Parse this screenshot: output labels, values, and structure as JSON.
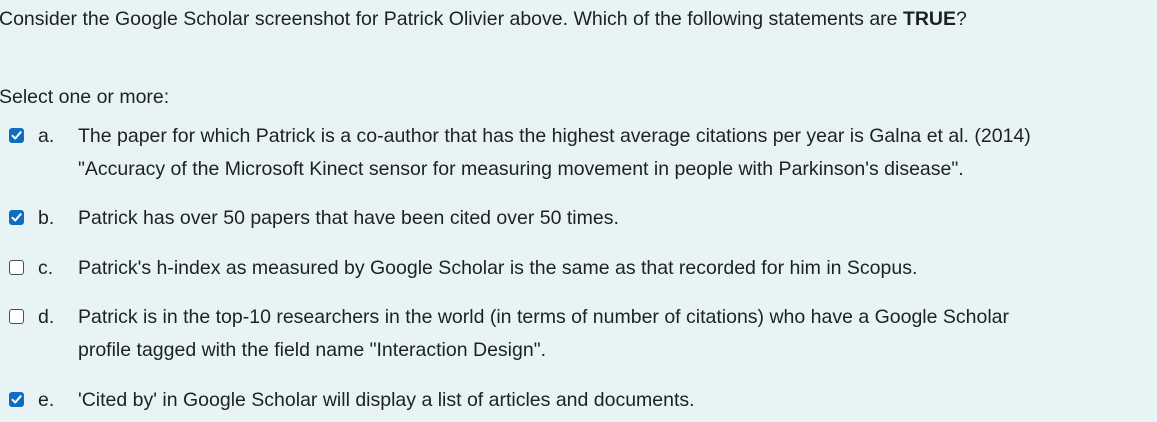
{
  "question": {
    "before": "Consider the Google Scholar screenshot for Patrick Olivier above. Which of the following statements are ",
    "emphasis": "TRUE",
    "after": "?"
  },
  "prompt": "Select one or more:",
  "options": [
    {
      "letter": "a.",
      "checked": true,
      "line1": "The paper for which Patrick is a co-author that has the highest average citations per year is Galna et al. (2014)",
      "line2": "\"Accuracy of the Microsoft Kinect sensor for measuring movement in people with Parkinson's disease\"."
    },
    {
      "letter": "b.",
      "checked": true,
      "line1": "Patrick has over 50 papers that have been cited over 50 times."
    },
    {
      "letter": "c.",
      "checked": false,
      "line1": "Patrick's h-index as measured by Google Scholar is the same as that recorded for him in Scopus."
    },
    {
      "letter": "d.",
      "checked": false,
      "line1": "Patrick is in the top-10 researchers in the world (in terms of number of citations) who have a Google Scholar",
      "line2": "profile tagged with the field name \"Interaction Design\"."
    },
    {
      "letter": "e.",
      "checked": true,
      "line1": "'Cited by' in Google Scholar will display a list of articles and documents."
    }
  ],
  "colors": {
    "background": "#e7f3f5",
    "checkbox_checked": "#0f6cbf",
    "text": "#1d2125"
  }
}
